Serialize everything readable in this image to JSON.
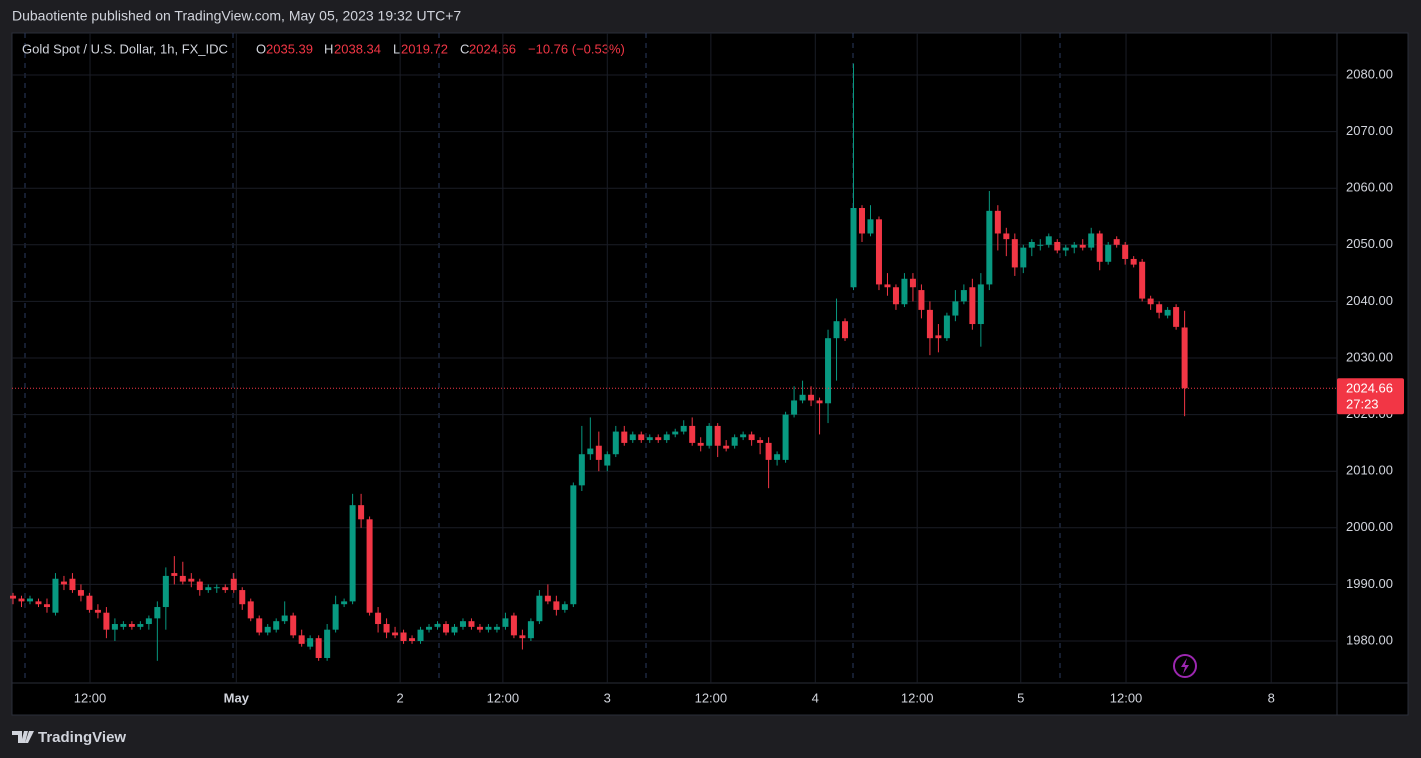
{
  "header": {
    "text": "Dubaotiente published on TradingView.com, May 05, 2023 19:32 UTC+7"
  },
  "chart_data": {
    "type": "candlestick",
    "title": "Gold Spot / U.S. Dollar, 1h, FX_IDC",
    "ohlc_labels": [
      "O",
      "H",
      "L",
      "C"
    ],
    "change": "−10.76 (−0.53%)",
    "countdown": "27:23",
    "up_color": "#089981",
    "down_color": "#f23645",
    "grid": true,
    "xlim": [
      -0.12,
      155.95
    ],
    "xticks": [
      {
        "value": 9.07,
        "label": "12:00"
      },
      {
        "value": 26.3,
        "label": "May"
      },
      {
        "value": 45.6,
        "label": "2"
      },
      {
        "value": 57.7,
        "label": "12:00"
      },
      {
        "value": 70.0,
        "label": "3"
      },
      {
        "value": 82.2,
        "label": "12:00"
      },
      {
        "value": 94.5,
        "label": "4"
      },
      {
        "value": 106.5,
        "label": "12:00"
      },
      {
        "value": 118.7,
        "label": "5"
      },
      {
        "value": 131.1,
        "label": "12:00"
      },
      {
        "value": 148.2,
        "label": "8"
      }
    ],
    "ylim": [
      1972.58,
      2087.42
    ],
    "yticks": [
      {
        "value": 1980,
        "label": "1980.00"
      },
      {
        "value": 1990,
        "label": "1990.00"
      },
      {
        "value": 2000,
        "label": "2000.00"
      },
      {
        "value": 2010,
        "label": "2010.00"
      },
      {
        "value": 2020,
        "label": "2020.00"
      },
      {
        "value": 2030,
        "label": "2030.00"
      },
      {
        "value": 2040,
        "label": "2040.00"
      },
      {
        "value": 2050,
        "label": "2050.00"
      },
      {
        "value": 2060,
        "label": "2060.00"
      },
      {
        "value": 2070,
        "label": "2070.00"
      },
      {
        "value": 2080,
        "label": "2080.00"
      }
    ],
    "ohlc": [
      [
        1988,
        1988.5,
        1986.5,
        1987.5
      ],
      [
        1987.5,
        1988,
        1986,
        1987
      ],
      [
        1987,
        1988,
        1986.5,
        1987.5
      ],
      [
        1987,
        1987.5,
        1986,
        1986.5
      ],
      [
        1986.5,
        1987.5,
        1985,
        1986
      ],
      [
        1985,
        1992,
        1984.5,
        1991
      ],
      [
        1990.5,
        1991.5,
        1989,
        1990
      ],
      [
        1991,
        1992,
        1988.5,
        1989
      ],
      [
        1989,
        1990,
        1987,
        1988
      ],
      [
        1988,
        1988.5,
        1985,
        1985.5
      ],
      [
        1985.5,
        1986.5,
        1984,
        1985
      ],
      [
        1985,
        1986,
        1980.5,
        1982
      ],
      [
        1982,
        1984,
        1980,
        1983
      ],
      [
        1982.5,
        1983.5,
        1982,
        1983
      ],
      [
        1983,
        1983.5,
        1982,
        1982.5
      ],
      [
        1982.5,
        1983.5,
        1982,
        1983
      ],
      [
        1983,
        1984.5,
        1982,
        1984
      ],
      [
        1984,
        1987,
        1976.5,
        1986
      ],
      [
        1986,
        1993,
        1982,
        1991.5
      ],
      [
        1992,
        1995,
        1990,
        1991.5
      ],
      [
        1991.5,
        1994,
        1990,
        1990.5
      ],
      [
        1991,
        1992,
        1989.5,
        1990.5
      ],
      [
        1990.5,
        1991,
        1988,
        1989
      ],
      [
        1989,
        1990,
        1988.5,
        1989.5
      ],
      [
        1989.5,
        1990,
        1988.5,
        1989.5
      ],
      [
        1989.5,
        1990,
        1988.5,
        1989
      ],
      [
        1991,
        1992,
        1988.5,
        1989
      ],
      [
        1989,
        1989.5,
        1985.5,
        1986.5
      ],
      [
        1987,
        1987.5,
        1983.5,
        1984
      ],
      [
        1984,
        1984.5,
        1981,
        1981.5
      ],
      [
        1981.5,
        1983,
        1981,
        1982.5
      ],
      [
        1982,
        1984,
        1981.5,
        1983.5
      ],
      [
        1983.5,
        1987,
        1983,
        1984.5
      ],
      [
        1984.5,
        1985,
        1980.5,
        1981
      ],
      [
        1981,
        1982,
        1979,
        1979.5
      ],
      [
        1979,
        1981,
        1978.5,
        1980.5
      ],
      [
        1980.5,
        1981,
        1976.5,
        1977
      ],
      [
        1977,
        1983,
        1976.5,
        1982
      ],
      [
        1982,
        1988,
        1981.5,
        1986.5
      ],
      [
        1986.5,
        1987.5,
        1986,
        1987
      ],
      [
        1987,
        2006,
        1986.5,
        2004
      ],
      [
        2004,
        2006,
        2000,
        2001.5
      ],
      [
        2001.5,
        2002,
        1984.5,
        1985
      ],
      [
        1985,
        1986,
        1981.5,
        1983
      ],
      [
        1983,
        1984,
        1980.5,
        1981.5
      ],
      [
        1981.5,
        1982.5,
        1980.5,
        1981
      ],
      [
        1981.5,
        1982,
        1979.5,
        1980
      ],
      [
        1980.5,
        1981,
        1979.5,
        1980
      ],
      [
        1980,
        1982.5,
        1979.5,
        1982
      ],
      [
        1982,
        1983,
        1981.5,
        1982.5
      ],
      [
        1982.5,
        1983.5,
        1982,
        1983
      ],
      [
        1983,
        1983.5,
        1981,
        1981.5
      ],
      [
        1981.5,
        1983,
        1981,
        1982.5
      ],
      [
        1982.5,
        1984,
        1982,
        1983.5
      ],
      [
        1983.5,
        1984,
        1982,
        1982.5
      ],
      [
        1982.5,
        1983,
        1981.5,
        1982
      ],
      [
        1982,
        1983,
        1981.5,
        1982.5
      ],
      [
        1982,
        1983,
        1981.5,
        1982.5
      ],
      [
        1982.5,
        1985,
        1982,
        1984
      ],
      [
        1984.5,
        1985,
        1980.5,
        1981
      ],
      [
        1981,
        1982,
        1978.5,
        1980.5
      ],
      [
        1980.5,
        1984,
        1980,
        1983.5
      ],
      [
        1983.5,
        1989,
        1983,
        1988
      ],
      [
        1988,
        1990,
        1986.5,
        1987
      ],
      [
        1987,
        1988,
        1984.5,
        1985.5
      ],
      [
        1985.5,
        1987,
        1985,
        1986.5
      ],
      [
        1986.5,
        2008,
        1986,
        2007.5
      ],
      [
        2007.5,
        2018,
        2006.5,
        2013
      ],
      [
        2013,
        2019.5,
        2012,
        2014
      ],
      [
        2014.5,
        2017,
        2010,
        2012
      ],
      [
        2011,
        2013.5,
        2010,
        2013
      ],
      [
        2013,
        2018,
        2012.5,
        2017
      ],
      [
        2017,
        2018,
        2014.5,
        2015
      ],
      [
        2015.5,
        2017,
        2015,
        2016.5
      ],
      [
        2016.5,
        2017,
        2015,
        2015.5
      ],
      [
        2015.5,
        2016.5,
        2015,
        2016
      ],
      [
        2016,
        2016.5,
        2015,
        2015.5
      ],
      [
        2015.5,
        2017,
        2015,
        2016.5
      ],
      [
        2016.5,
        2017.5,
        2016,
        2017
      ],
      [
        2017,
        2019,
        2016.5,
        2018
      ],
      [
        2018,
        2019.5,
        2014.5,
        2015
      ],
      [
        2015,
        2016,
        2013.5,
        2014.5
      ],
      [
        2014.5,
        2018.5,
        2014,
        2018
      ],
      [
        2018,
        2018.5,
        2012.5,
        2014.5
      ],
      [
        2014.5,
        2015.5,
        2013.5,
        2014
      ],
      [
        2014.5,
        2016.5,
        2014,
        2016
      ],
      [
        2016,
        2017,
        2015.5,
        2016.5
      ],
      [
        2016.5,
        2017,
        2014.5,
        2015.5
      ],
      [
        2015.5,
        2016,
        2013,
        2015
      ],
      [
        2015,
        2016,
        2007,
        2012
      ],
      [
        2012,
        2013.5,
        2011,
        2013
      ],
      [
        2012,
        2020.5,
        2011.5,
        2020
      ],
      [
        2020,
        2025,
        2019.5,
        2022.5
      ],
      [
        2022.5,
        2026,
        2022,
        2023.5
      ],
      [
        2023.5,
        2025,
        2021.5,
        2022.5
      ],
      [
        2022.5,
        2023,
        2016.5,
        2022
      ],
      [
        2022,
        2035,
        2018.5,
        2033.5
      ],
      [
        2033.5,
        2040.5,
        2026,
        2036.5
      ],
      [
        2036.5,
        2037,
        2033,
        2033.5
      ],
      [
        2042.5,
        2082,
        2042,
        2056.5
      ],
      [
        2056.5,
        2057,
        2050.5,
        2052
      ],
      [
        2052,
        2057,
        2051.5,
        2054.5
      ],
      [
        2054.5,
        2055,
        2042,
        2043
      ],
      [
        2043,
        2045,
        2041,
        2042.5
      ],
      [
        2042.5,
        2043,
        2038.5,
        2039.5
      ],
      [
        2039.5,
        2045,
        2039,
        2044
      ],
      [
        2044,
        2045,
        2040,
        2042.5
      ],
      [
        2042,
        2043,
        2037,
        2038.5
      ],
      [
        2038.5,
        2040,
        2030.5,
        2033.5
      ],
      [
        2034,
        2036,
        2031,
        2033.5
      ],
      [
        2033.5,
        2038,
        2033,
        2037.5
      ],
      [
        2037.5,
        2042,
        2036.5,
        2040
      ],
      [
        2040,
        2043,
        2039.5,
        2042
      ],
      [
        2042.5,
        2044,
        2035,
        2036
      ],
      [
        2036,
        2045,
        2032,
        2043
      ],
      [
        2043,
        2059.5,
        2042,
        2056
      ],
      [
        2056,
        2057,
        2049,
        2052
      ],
      [
        2052,
        2053,
        2048,
        2051
      ],
      [
        2051,
        2052,
        2044.5,
        2046
      ],
      [
        2046,
        2050,
        2045,
        2049.5
      ],
      [
        2049.5,
        2051,
        2048,
        2050.5
      ],
      [
        2050,
        2051,
        2049,
        2050
      ],
      [
        2050,
        2052,
        2049.5,
        2051.5
      ],
      [
        2050.5,
        2051,
        2048.5,
        2049
      ],
      [
        2049,
        2050,
        2048,
        2049.5
      ],
      [
        2049.5,
        2050.5,
        2048.5,
        2050
      ],
      [
        2050,
        2051,
        2049,
        2049.5
      ],
      [
        2049.5,
        2053,
        2049,
        2052
      ],
      [
        2052,
        2052.5,
        2045.5,
        2047
      ],
      [
        2047,
        2050.5,
        2046.5,
        2050
      ],
      [
        2051,
        2051.5,
        2049.5,
        2050
      ],
      [
        2050,
        2050.5,
        2046.5,
        2047.5
      ],
      [
        2047.5,
        2048,
        2046,
        2046.5
      ],
      [
        2047,
        2047.5,
        2040,
        2040.5
      ],
      [
        2040.5,
        2041,
        2038.5,
        2039.5
      ],
      [
        2039.5,
        2040,
        2037,
        2038
      ],
      [
        2037.5,
        2039,
        2037,
        2038.5
      ],
      [
        2039,
        2039.5,
        2035,
        2035.5
      ],
      [
        2035.39,
        2038.34,
        2019.72,
        2024.66
      ]
    ]
  },
  "footer": {
    "brand": "TradingView"
  }
}
